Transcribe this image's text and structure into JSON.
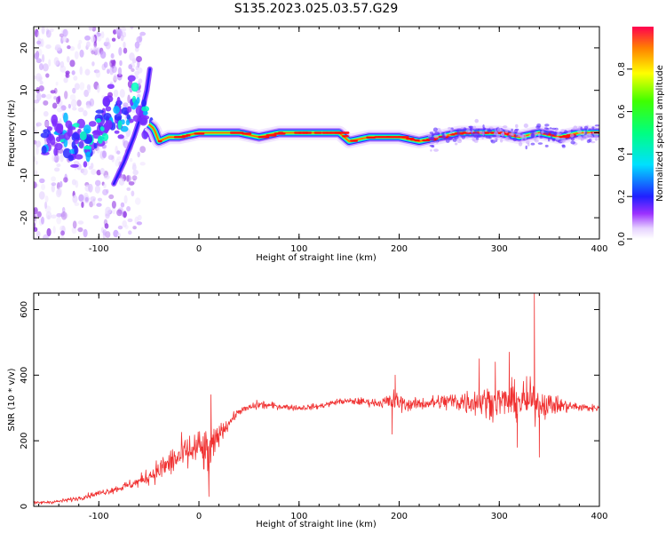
{
  "title": "S135.2023.025.03.57.G29",
  "colors": {
    "snr_line": "#f03030",
    "ridge_core": "#ff1010",
    "background": "#ffffff"
  },
  "chart_data": [
    {
      "type": "heatmap",
      "xlabel": "Height of straight line (km)",
      "ylabel": "Frequency (Hz)",
      "xlim": [
        -165,
        400
      ],
      "ylim": [
        -25,
        25
      ],
      "xticks": [
        -100,
        0,
        100,
        200,
        300,
        400
      ],
      "yticks": [
        -20,
        -10,
        0,
        10,
        20
      ],
      "colorbar": {
        "label": "Normalized spectral amplitude",
        "range": [
          0,
          1
        ],
        "ticks": [
          "0.0",
          "0.2",
          "0.4",
          "0.6",
          "0.8"
        ],
        "tick_values": [
          0.0,
          0.2,
          0.4,
          0.6,
          0.8
        ],
        "colormap": "rainbow"
      },
      "ridge": [
        {
          "x": -155,
          "f": -2
        },
        {
          "x": -140,
          "f": 0
        },
        {
          "x": -125,
          "f": -3
        },
        {
          "x": -110,
          "f": -2
        },
        {
          "x": -95,
          "f": 2
        },
        {
          "x": -85,
          "f": 5
        },
        {
          "x": -75,
          "f": 4
        },
        {
          "x": -65,
          "f": 8
        },
        {
          "x": -55,
          "f": 3
        },
        {
          "x": -45,
          "f": 1
        },
        {
          "x": -40,
          "f": -2
        },
        {
          "x": -30,
          "f": -1
        },
        {
          "x": -20,
          "f": -1
        },
        {
          "x": 0,
          "f": 0
        },
        {
          "x": 20,
          "f": 0
        },
        {
          "x": 40,
          "f": 0
        },
        {
          "x": 60,
          "f": -1
        },
        {
          "x": 80,
          "f": 0
        },
        {
          "x": 100,
          "f": 0
        },
        {
          "x": 120,
          "f": 0
        },
        {
          "x": 140,
          "f": 0
        },
        {
          "x": 150,
          "f": -2
        },
        {
          "x": 170,
          "f": -1
        },
        {
          "x": 200,
          "f": -1
        },
        {
          "x": 220,
          "f": -2
        },
        {
          "x": 240,
          "f": -1
        },
        {
          "x": 260,
          "f": 0
        },
        {
          "x": 280,
          "f": 0
        },
        {
          "x": 300,
          "f": 0
        },
        {
          "x": 320,
          "f": -1
        },
        {
          "x": 340,
          "f": 0
        },
        {
          "x": 360,
          "f": -1
        },
        {
          "x": 380,
          "f": 0
        },
        {
          "x": 400,
          "f": 0
        }
      ],
      "chirp": [
        {
          "x": -85,
          "f": -12
        },
        {
          "x": -75,
          "f": -7
        },
        {
          "x": -65,
          "f": -1
        },
        {
          "x": -58,
          "f": 4
        },
        {
          "x": -52,
          "f": 10
        },
        {
          "x": -49,
          "f": 15
        }
      ]
    },
    {
      "type": "line",
      "xlabel": "Height of straight line (km)",
      "ylabel": "SNR (10 * v/v)",
      "xlim": [
        -165,
        400
      ],
      "ylim": [
        0,
        650
      ],
      "xticks": [
        -100,
        0,
        100,
        200,
        300,
        400
      ],
      "yticks": [
        0,
        200,
        400,
        600
      ],
      "envelope": [
        {
          "x": -165,
          "mean": 10,
          "spread": 8
        },
        {
          "x": -140,
          "mean": 15,
          "spread": 10
        },
        {
          "x": -120,
          "mean": 25,
          "spread": 12
        },
        {
          "x": -100,
          "mean": 40,
          "spread": 15
        },
        {
          "x": -80,
          "mean": 55,
          "spread": 20
        },
        {
          "x": -60,
          "mean": 75,
          "spread": 30
        },
        {
          "x": -40,
          "mean": 110,
          "spread": 60
        },
        {
          "x": -20,
          "mean": 150,
          "spread": 90
        },
        {
          "x": 0,
          "mean": 180,
          "spread": 100
        },
        {
          "x": 10,
          "mean": 150,
          "spread": 150
        },
        {
          "x": 20,
          "mean": 220,
          "spread": 50
        },
        {
          "x": 40,
          "mean": 290,
          "spread": 15
        },
        {
          "x": 60,
          "mean": 310,
          "spread": 25
        },
        {
          "x": 80,
          "mean": 305,
          "spread": 15
        },
        {
          "x": 100,
          "mean": 300,
          "spread": 15
        },
        {
          "x": 120,
          "mean": 305,
          "spread": 15
        },
        {
          "x": 140,
          "mean": 320,
          "spread": 15
        },
        {
          "x": 160,
          "mean": 320,
          "spread": 20
        },
        {
          "x": 180,
          "mean": 315,
          "spread": 20
        },
        {
          "x": 195,
          "mean": 320,
          "spread": 60
        },
        {
          "x": 210,
          "mean": 310,
          "spread": 30
        },
        {
          "x": 230,
          "mean": 315,
          "spread": 35
        },
        {
          "x": 250,
          "mean": 320,
          "spread": 50
        },
        {
          "x": 270,
          "mean": 320,
          "spread": 70
        },
        {
          "x": 290,
          "mean": 320,
          "spread": 80
        },
        {
          "x": 310,
          "mean": 320,
          "spread": 90
        },
        {
          "x": 330,
          "mean": 320,
          "spread": 110
        },
        {
          "x": 350,
          "mean": 310,
          "spread": 60
        },
        {
          "x": 370,
          "mean": 305,
          "spread": 30
        },
        {
          "x": 390,
          "mean": 300,
          "spread": 20
        },
        {
          "x": 400,
          "mean": 300,
          "spread": 15
        }
      ],
      "spikes": [
        {
          "x": 10,
          "y": 30
        },
        {
          "x": 12,
          "y": 340
        },
        {
          "x": 193,
          "y": 220
        },
        {
          "x": 196,
          "y": 400
        },
        {
          "x": 280,
          "y": 450
        },
        {
          "x": 296,
          "y": 440
        },
        {
          "x": 310,
          "y": 470
        },
        {
          "x": 318,
          "y": 180
        },
        {
          "x": 335,
          "y": 650
        },
        {
          "x": 340,
          "y": 150
        }
      ]
    }
  ]
}
